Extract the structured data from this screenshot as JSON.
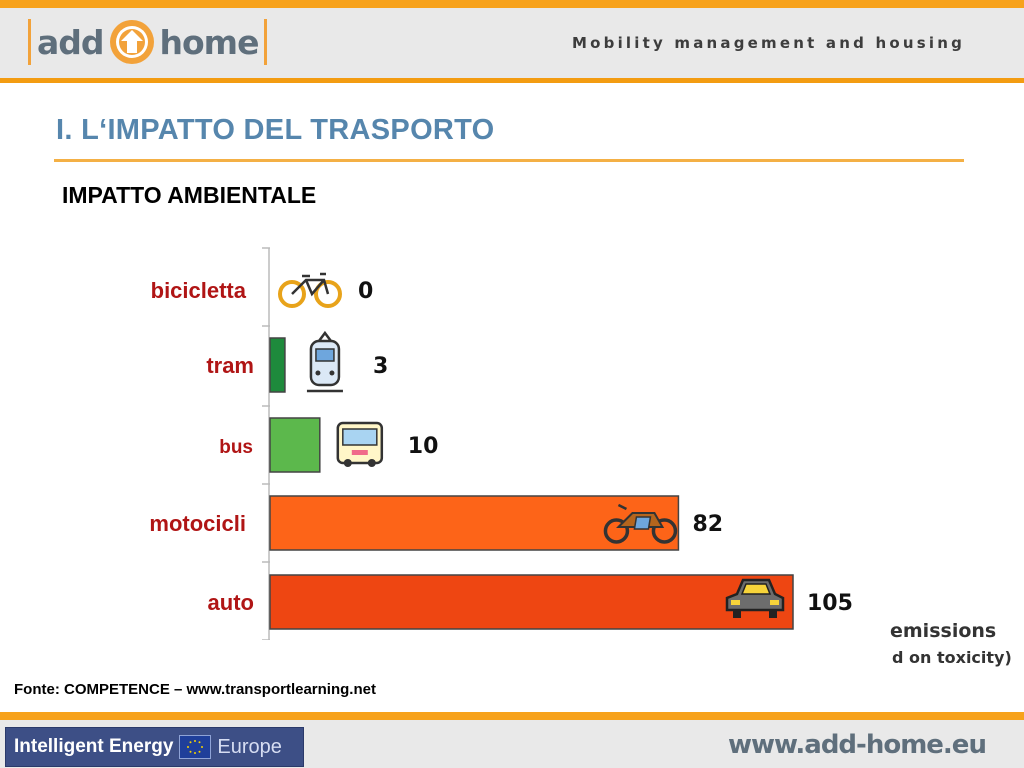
{
  "header": {
    "logo_left": "add",
    "logo_right": "home",
    "tagline": "Mobility management and housing"
  },
  "slide": {
    "title": "I. L‘IMPATTO DEL TRASPORTO",
    "subtitle": "IMPATTO AMBIENTALE",
    "emissions_line1": "emissions",
    "emissions_line2": "d on toxicity)",
    "source": "Fonte: COMPETENCE – www.transportlearning.net"
  },
  "chart_data": {
    "type": "bar",
    "orientation": "horizontal",
    "categories": [
      "bicicletta",
      "tram",
      "bus",
      "motocicli",
      "auto"
    ],
    "values": [
      0,
      3,
      10,
      82,
      105
    ],
    "colors": [
      "#ffffff",
      "#1e8a3c",
      "#5cb84c",
      "#fd6418",
      "#ee4612"
    ],
    "icons": [
      "bicycle-icon",
      "tram-icon",
      "bus-icon",
      "motorcycle-icon",
      "car-icon"
    ],
    "xlim": [
      0,
      105
    ],
    "grid": false
  },
  "footer": {
    "program_name": "Intelligent Energy",
    "program_region": "Europe",
    "url": "www.add-home.eu"
  }
}
